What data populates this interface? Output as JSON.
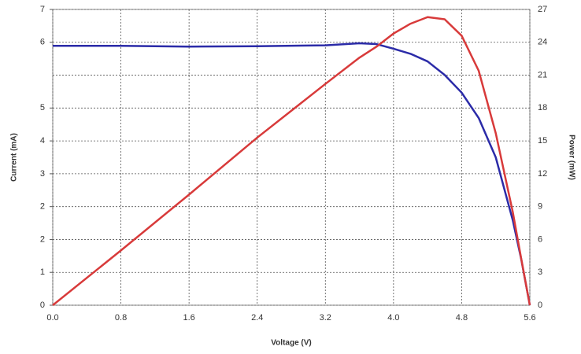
{
  "chart_data": {
    "type": "line",
    "x_label": "Voltage (V)",
    "y_label": "Current (mA)",
    "y2_label": "Power (mW)",
    "x": [
      0,
      0.8,
      1.6,
      2.4,
      3.2,
      3.6,
      3.8,
      4.0,
      4.2,
      4.4,
      4.6,
      4.8,
      5.0,
      5.2,
      5.4,
      5.5,
      5.6
    ],
    "series": [
      {
        "color": "#2b2ba8",
        "values": [
          6.14,
          6.14,
          6.12,
          6.13,
          6.15,
          6.2,
          6.18,
          6.07,
          5.95,
          5.77,
          5.45,
          5.03,
          4.43,
          3.5,
          2.01,
          1.08,
          0
        ]
      },
      {
        "color": "#d83a3a",
        "axis": "y2",
        "values": [
          0,
          5.0,
          10.1,
          15.3,
          20.2,
          22.6,
          23.6,
          24.8,
          25.7,
          26.3,
          26.1,
          24.6,
          21.4,
          15.7,
          8.5,
          4.2,
          0
        ]
      }
    ],
    "xlim": [
      0,
      5.6
    ],
    "xticks": [
      {
        "value": 0,
        "label": "0.0"
      },
      0.8,
      1.6,
      2.4,
      3.2,
      {
        "value": 4,
        "label": "4.0"
      },
      4.8,
      5.6
    ],
    "ylim": [
      0,
      7
    ],
    "yticks": [
      0,
      {
        "value": 0.778,
        "label": "1"
      },
      {
        "value": 1.556,
        "label": "2"
      },
      {
        "value": 2.333,
        "label": "2"
      },
      {
        "value": 3.111,
        "label": "3"
      },
      {
        "value": 3.889,
        "label": "4"
      },
      {
        "value": 4.667,
        "label": "5"
      },
      {
        "value": 6.222,
        "label": "6"
      },
      7
    ],
    "y2lim": [
      0,
      27
    ],
    "y2ticks": [
      0,
      3,
      6,
      9,
      12,
      15,
      18,
      21,
      24,
      27
    ],
    "grid": true
  }
}
